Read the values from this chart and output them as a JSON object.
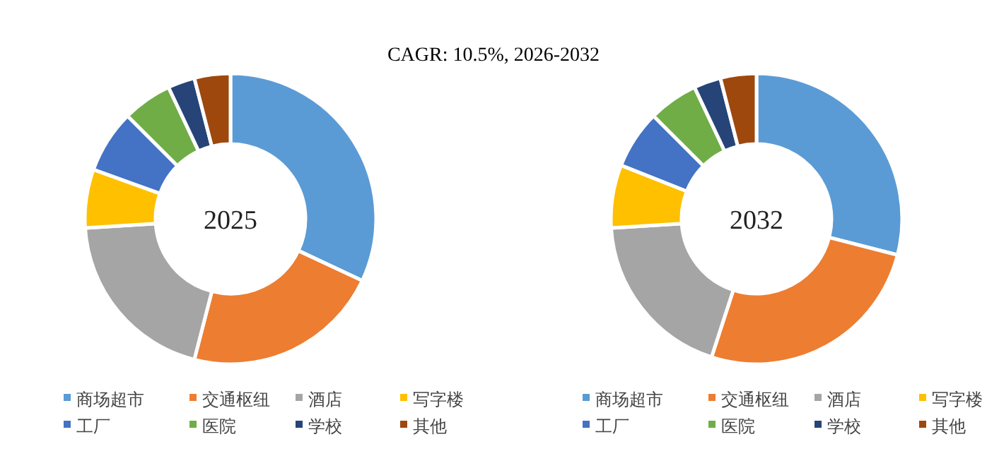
{
  "chart_data": [
    {
      "type": "donut",
      "title": "CAGR:      10.5%, 2026-2032",
      "annotations": [
        "2025"
      ],
      "legend": "bottom",
      "categories": [
        "商场超市",
        "交通枢纽",
        "酒店",
        "写字楼",
        "工厂",
        "医院",
        "学校",
        "其他"
      ],
      "values": [
        32,
        22,
        20,
        6.5,
        7,
        5.5,
        3,
        4
      ],
      "colors": [
        "#5b9bd5",
        "#ed7d31",
        "#a5a5a5",
        "#ffc000",
        "#4472c4",
        "#70ad47",
        "#264478",
        "#9e480e"
      ]
    },
    {
      "type": "donut",
      "annotations": [
        "2032"
      ],
      "legend": "bottom",
      "categories": [
        "商场超市",
        "交通枢纽",
        "酒店",
        "写字楼",
        "工厂",
        "医院",
        "学校",
        "其他"
      ],
      "values": [
        29,
        26,
        19,
        7,
        6.5,
        5.5,
        3,
        4
      ],
      "colors": [
        "#5b9bd5",
        "#ed7d31",
        "#a5a5a5",
        "#ffc000",
        "#4472c4",
        "#70ad47",
        "#264478",
        "#9e480e"
      ]
    }
  ]
}
